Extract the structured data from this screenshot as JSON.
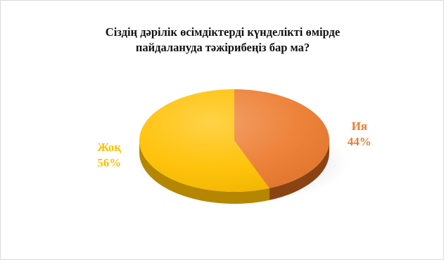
{
  "chart_data": {
    "type": "pie",
    "title_lines": [
      "Сіздің дәрілік өсімдіктерді күнделікті өмірде",
      "пайдалануда тәжірибеңіз бар ма?"
    ],
    "categories": [
      "Ия",
      "Жоқ"
    ],
    "values": [
      44,
      56
    ],
    "value_labels": [
      "44%",
      "56%"
    ],
    "colors": [
      "#ED7D31",
      "#FFC000"
    ],
    "side_colors": [
      "#8A4414",
      "#B58600"
    ],
    "legend": "none",
    "data_labels": "category and percent"
  }
}
